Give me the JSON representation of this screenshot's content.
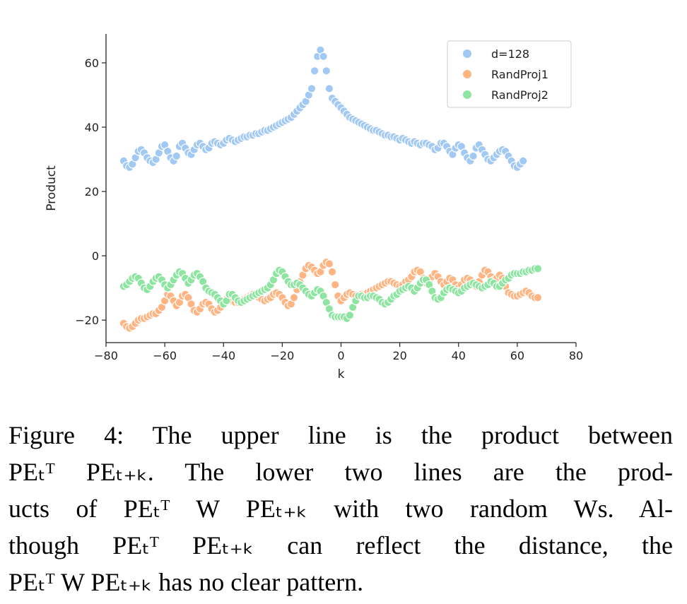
{
  "chart_data": {
    "type": "scatter",
    "title": "",
    "xlabel": "k",
    "ylabel": "Product",
    "xlim": [
      -80,
      80
    ],
    "ylim": [
      -27,
      69
    ],
    "xticks": [
      -80,
      -60,
      -40,
      -20,
      0,
      20,
      40,
      60,
      80
    ],
    "yticks": [
      -20,
      0,
      20,
      40,
      60
    ],
    "xtick_labels": [
      "−80",
      "−60",
      "−40",
      "−20",
      "0",
      "20",
      "40",
      "60",
      "80"
    ],
    "ytick_labels": [
      "−20",
      "0",
      "20",
      "40",
      "60"
    ],
    "legend_position": "top-right",
    "grid": false,
    "x": [
      -74,
      -73,
      -72,
      -71,
      -70,
      -69,
      -68,
      -67,
      -66,
      -65,
      -64,
      -63,
      -62,
      -61,
      -60,
      -59,
      -58,
      -57,
      -56,
      -55,
      -54,
      -53,
      -52,
      -51,
      -50,
      -49,
      -48,
      -47,
      -46,
      -45,
      -44,
      -43,
      -42,
      -41,
      -40,
      -39,
      -38,
      -37,
      -36,
      -35,
      -34,
      -33,
      -32,
      -31,
      -30,
      -29,
      -28,
      -27,
      -26,
      -25,
      -24,
      -23,
      -22,
      -21,
      -20,
      -19,
      -18,
      -17,
      -16,
      -15,
      -14,
      -13,
      -12,
      -11,
      -10,
      -9,
      -8,
      -7,
      -6,
      -5,
      -4,
      -3,
      -2,
      -1,
      0,
      1,
      2,
      3,
      4,
      5,
      6,
      7,
      8,
      9,
      10,
      11,
      12,
      13,
      14,
      15,
      16,
      17,
      18,
      19,
      20,
      21,
      22,
      23,
      24,
      25,
      26,
      27,
      28,
      29,
      30,
      31,
      32,
      33,
      34,
      35,
      36,
      37,
      38,
      39,
      40,
      41,
      42,
      43,
      44,
      45,
      46,
      47,
      48,
      49,
      50,
      51,
      52,
      53,
      54,
      55,
      56,
      57,
      58,
      59,
      60,
      61,
      62,
      63,
      64,
      65,
      66,
      67,
      68,
      69,
      70,
      71,
      72,
      73,
      74
    ],
    "series": [
      {
        "name": "d=128",
        "color": "#a1c9f4",
        "values": [
          29.5,
          28,
          27.5,
          28.5,
          30.5,
          32.5,
          33,
          32,
          30.5,
          29.5,
          29,
          30,
          32,
          34,
          34.5,
          32.5,
          30.5,
          29.5,
          31,
          34,
          35,
          33.5,
          32,
          31.5,
          33,
          34.5,
          35,
          34,
          33,
          33.5,
          35,
          35.5,
          35,
          34.5,
          35,
          36,
          36.5,
          36,
          35.5,
          36,
          36.5,
          37,
          37,
          37.5,
          37.5,
          38,
          38,
          38.5,
          39,
          39,
          39.5,
          40,
          40.5,
          41,
          41.5,
          42,
          42.5,
          43,
          44,
          45,
          46,
          47,
          48,
          50,
          52,
          57.5,
          62,
          64,
          62,
          57.5,
          52,
          49,
          48,
          47,
          46,
          45,
          44,
          43,
          42.5,
          42,
          41.5,
          41,
          40.5,
          40,
          39.5,
          39,
          39,
          38.5,
          38,
          37.5,
          37.5,
          37,
          37,
          36.5,
          36,
          36.5,
          36,
          35.5,
          35,
          35.5,
          35,
          34.5,
          35,
          35,
          34.5,
          34,
          33,
          33.5,
          35,
          35,
          34,
          32.5,
          31.5,
          33.5,
          34.5,
          34,
          32,
          30.5,
          29.5,
          31,
          33.5,
          34.5,
          33,
          31.5,
          30,
          29.5,
          30.5,
          31.5,
          32.5,
          33,
          32.5,
          31,
          29.5,
          28,
          27.5,
          28.5,
          29.5
        ]
      },
      {
        "name": "RandProj1",
        "color": "#ffb482",
        "values": [
          -21,
          -22,
          -22.5,
          -22,
          -21,
          -20,
          -19.5,
          -19.5,
          -19,
          -18.5,
          -18,
          -18,
          -17,
          -16,
          -14,
          -12,
          -12.5,
          -14,
          -15.5,
          -14.5,
          -12.5,
          -12,
          -13,
          -15,
          -17,
          -17.5,
          -16.5,
          -15,
          -14.5,
          -15,
          -16.5,
          -17.5,
          -17,
          -16,
          -14.5,
          -13.5,
          -13.5,
          -14,
          -14.5,
          -14.5,
          -14,
          -13.5,
          -13,
          -12.5,
          -12,
          -12.5,
          -13,
          -13.5,
          -14,
          -13.5,
          -13,
          -12,
          -11.5,
          -12,
          -13,
          -14.5,
          -15.5,
          -15,
          -13,
          -10.5,
          -8,
          -6,
          -4,
          -3,
          -3.5,
          -4.5,
          -5.5,
          -5,
          -3,
          -2,
          -2.5,
          -5,
          -9,
          -12.5,
          -14,
          -13,
          -12,
          -11.5,
          -12,
          -12.5,
          -12.5,
          -12,
          -12,
          -11.5,
          -11,
          -10.5,
          -10,
          -9.5,
          -9,
          -8.5,
          -8,
          -8,
          -8.5,
          -9,
          -9.5,
          -9,
          -8,
          -7.5,
          -6.5,
          -5,
          -4.5,
          -5,
          -7,
          -8.5,
          -8,
          -6.5,
          -5.5,
          -6.5,
          -8,
          -9,
          -8,
          -7,
          -7.5,
          -9,
          -10,
          -9,
          -7.5,
          -7,
          -7.5,
          -9,
          -9.5,
          -8,
          -6,
          -4.5,
          -5,
          -6.5,
          -7.5,
          -7,
          -6,
          -7,
          -9.5,
          -11.5,
          -12,
          -12.5,
          -12.5,
          -12,
          -11.5,
          -11,
          -11.5,
          -12.5,
          -13,
          -13
        ]
      },
      {
        "name": "RandProj2",
        "color": "#8de5a1",
        "values": [
          -9.5,
          -9,
          -8,
          -7,
          -6.5,
          -7,
          -8.5,
          -10,
          -10.5,
          -9.5,
          -8,
          -7,
          -6.5,
          -7.5,
          -9,
          -10,
          -9,
          -7.5,
          -6,
          -5,
          -5.5,
          -7,
          -8.5,
          -7.5,
          -6,
          -5.5,
          -6.5,
          -8,
          -10,
          -11,
          -11.5,
          -12,
          -13,
          -14,
          -15,
          -14,
          -12,
          -12,
          -13,
          -14,
          -14.5,
          -14,
          -13.5,
          -13,
          -12.5,
          -12,
          -11.5,
          -11,
          -10.5,
          -10,
          -9,
          -7.5,
          -5.5,
          -4.5,
          -5,
          -6.5,
          -8,
          -9,
          -9,
          -8.5,
          -9,
          -10,
          -11,
          -12,
          -12.5,
          -11.5,
          -10.5,
          -11,
          -12.5,
          -14.5,
          -16.5,
          -18.5,
          -19,
          -19,
          -19,
          -19,
          -19.5,
          -18.5,
          -16,
          -14,
          -12.5,
          -12.5,
          -13,
          -13,
          -12.5,
          -12.5,
          -13,
          -13.5,
          -14.5,
          -15,
          -14.5,
          -13.5,
          -12.5,
          -12,
          -11,
          -10.5,
          -10,
          -9.5,
          -10,
          -11,
          -10,
          -8.5,
          -7.5,
          -7.5,
          -9,
          -11,
          -13,
          -13.5,
          -13,
          -11.5,
          -10.5,
          -10,
          -10.5,
          -11,
          -11.5,
          -11,
          -10,
          -9.5,
          -9,
          -8.5,
          -9,
          -9.5,
          -10,
          -9.5,
          -9,
          -8,
          -8.5,
          -9.5,
          -9.5,
          -8.5,
          -7.5,
          -7,
          -6,
          -5.5,
          -5.5,
          -5.5,
          -5,
          -5,
          -4.5,
          -4.5,
          -4,
          -4
        ]
      }
    ]
  },
  "caption": {
    "line1": "Figure 4:  The upper line is the product between",
    "line2": "PEₜᵀ PEₜ₊ₖ.  The lower two lines are the prod-",
    "line3": "ucts of PEₜᵀ W PEₜ₊ₖ with two random Ws.  Al-",
    "line4": "though PEₜᵀ PEₜ₊ₖ can reflect the distance, the",
    "line5": "PEₜᵀ W PEₜ₊ₖ has no clear pattern."
  }
}
